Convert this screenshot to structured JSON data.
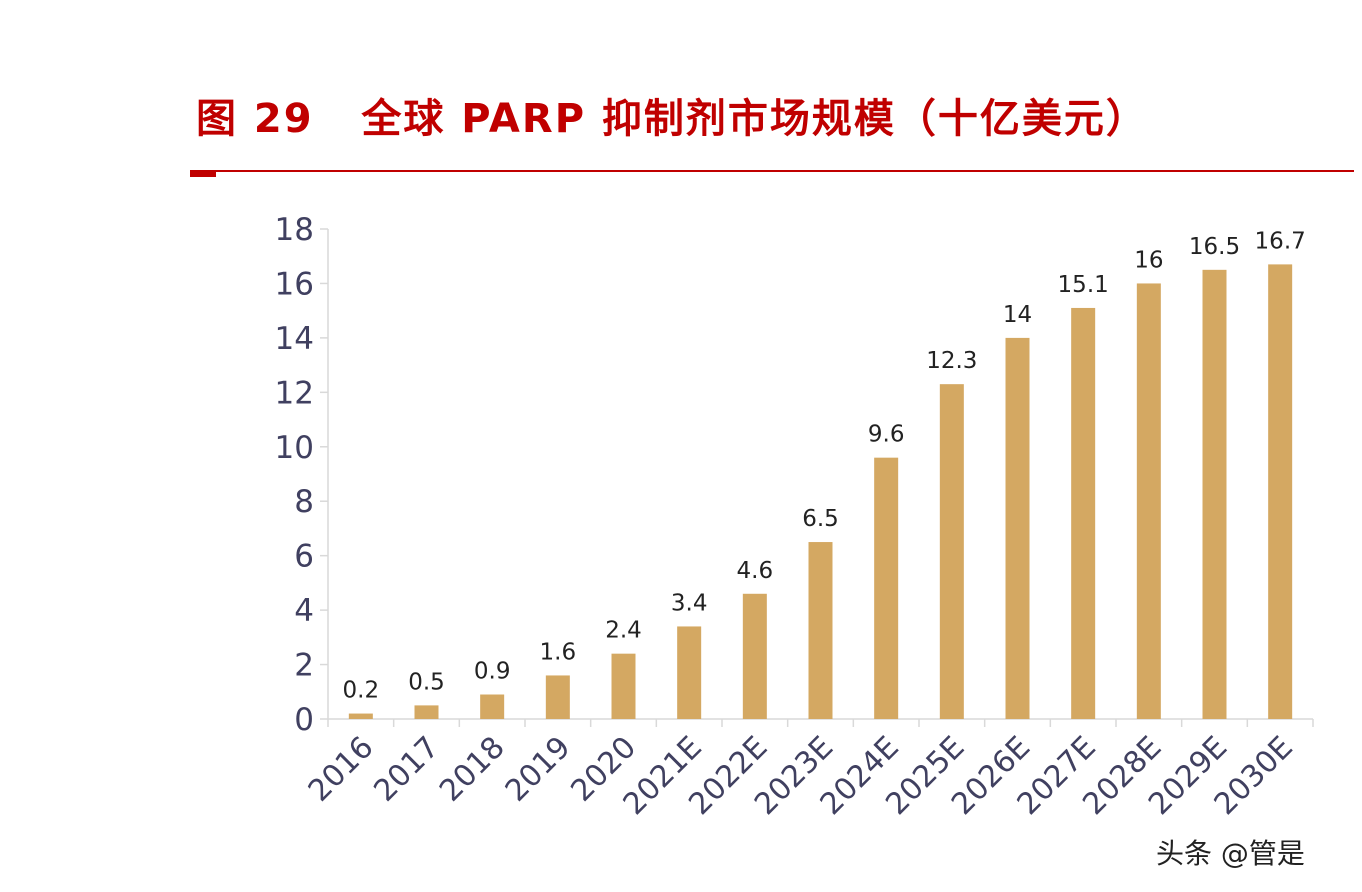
{
  "chart_data": {
    "type": "bar",
    "title": "图 29   全球 PARP 抑制剂市场规模（十亿美元）",
    "xlabel": "",
    "ylabel": "",
    "ylim": [
      0,
      18
    ],
    "yticks": [
      "0",
      "2",
      "4",
      "6",
      "8",
      "10",
      "12",
      "14",
      "16",
      "18"
    ],
    "categories": [
      "2016",
      "2017",
      "2018",
      "2019",
      "2020",
      "2021E",
      "2022E",
      "2023E",
      "2024E",
      "2025E",
      "2026E",
      "2027E",
      "2028E",
      "2029E",
      "2030E"
    ],
    "values": [
      0.2,
      0.5,
      0.9,
      1.6,
      2.4,
      3.4,
      4.6,
      6.5,
      9.6,
      12.3,
      14,
      15.1,
      16,
      16.5,
      16.7
    ],
    "data_labels": [
      "0.2",
      "0.5",
      "0.9",
      "1.6",
      "2.4",
      "3.4",
      "4.6",
      "6.5",
      "9.6",
      "12.3",
      "14",
      "15.1",
      "16",
      "16.5",
      "16.7"
    ],
    "grid": false,
    "legend": "none"
  },
  "colors": {
    "bar": "#d4a862",
    "title": "#c00000",
    "axis": "#d9d9d9",
    "tick_text": "#404060",
    "label_text": "#222222"
  },
  "watermark": "头条 @管是"
}
